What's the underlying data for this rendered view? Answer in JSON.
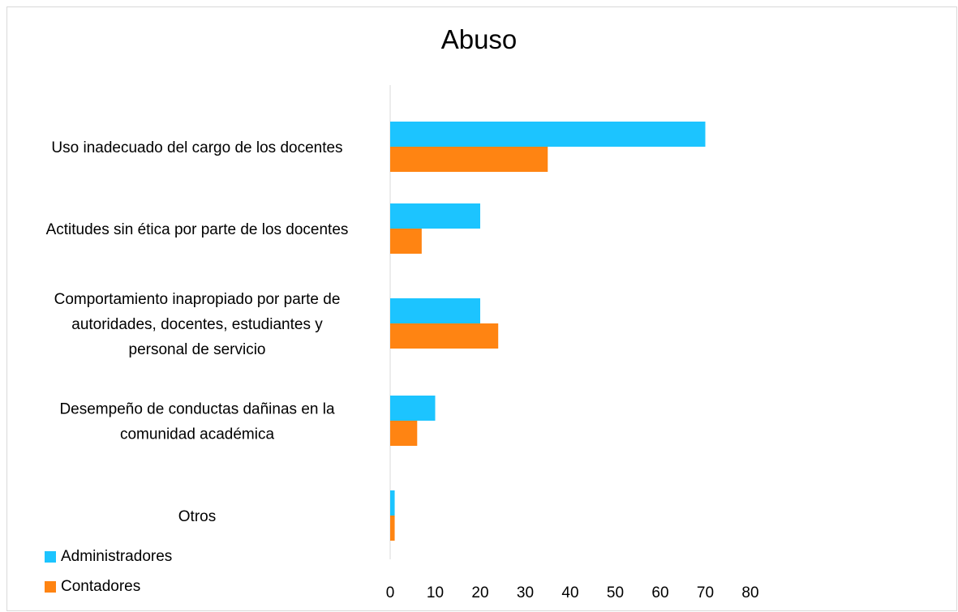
{
  "chart_data": {
    "type": "bar",
    "orientation": "horizontal",
    "title": "Abuso",
    "categories": [
      [
        "Uso inadecuado del cargo de los docentes"
      ],
      [
        "Actitudes sin ética por parte de los docentes"
      ],
      [
        "Comportamiento inapropiado por parte de",
        "autoridades, docentes, estudiantes y",
        "personal de servicio"
      ],
      [
        "Desempeño de conductas dañinas en la",
        "comunidad académica"
      ],
      [
        "Otros"
      ]
    ],
    "series": [
      {
        "name": "Administradores",
        "color": "#1cc4ff",
        "values": [
          70,
          20,
          20,
          10,
          1
        ]
      },
      {
        "name": "Contadores",
        "color": "#ff8412",
        "values": [
          35,
          7,
          24,
          6,
          1
        ]
      }
    ],
    "x_ticks": [
      "0",
      "10",
      "20",
      "30",
      "40",
      "50",
      "60",
      "70",
      "80"
    ],
    "xlim": [
      0,
      80
    ],
    "grid": false,
    "legend_position": "bottom-left"
  }
}
